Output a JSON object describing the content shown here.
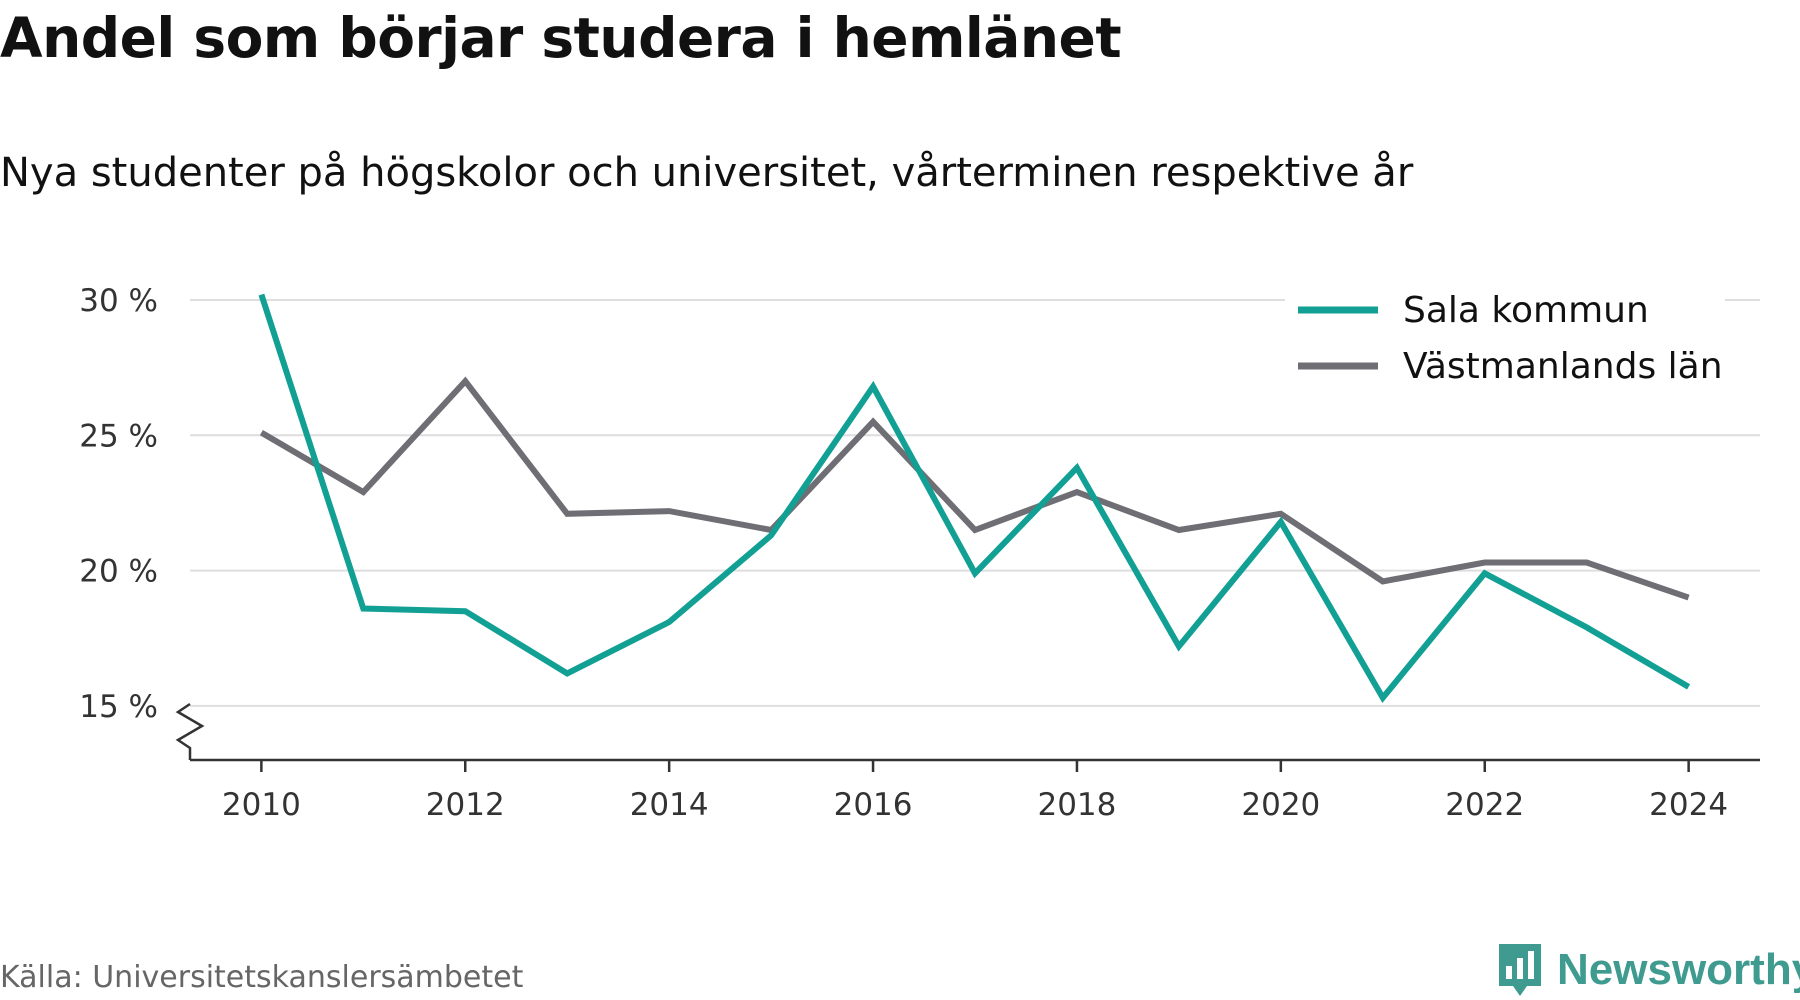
{
  "title": "Andel som börjar studera i hemlänet",
  "subtitle": "Nya studenter på högskolor och universitet, vårterminen respektive år",
  "source": "Källa: Universitetskanslersämbetet",
  "brand": {
    "name": "Newsworthy",
    "color": "#3f9b8f"
  },
  "chart_data": {
    "type": "line",
    "title": "Andel som börjar studera i hemlänet",
    "subtitle": "Nya studenter på högskolor och universitet, vårterminen respektive år",
    "x": [
      2010,
      2011,
      2012,
      2013,
      2014,
      2015,
      2016,
      2017,
      2018,
      2019,
      2020,
      2021,
      2022,
      2023,
      2024
    ],
    "xticks": [
      2010,
      2012,
      2014,
      2016,
      2018,
      2020,
      2022,
      2024
    ],
    "xtick_labels": [
      "2010",
      "2012",
      "2014",
      "2016",
      "2018",
      "2020",
      "2022",
      "2024"
    ],
    "yticks": [
      15,
      20,
      25,
      30
    ],
    "ytick_labels": [
      "15 %",
      "20 %",
      "25 %",
      "30 %"
    ],
    "ylim": [
      13,
      30
    ],
    "xlim": [
      2009.3,
      2024.7
    ],
    "y_axis_break": true,
    "grid": true,
    "legend_position": "top-right",
    "series": [
      {
        "name": "Sala kommun",
        "color": "#12a094",
        "values": [
          30.2,
          18.6,
          18.5,
          16.2,
          18.1,
          21.3,
          26.8,
          19.9,
          23.8,
          17.2,
          21.8,
          15.3,
          19.9,
          17.9,
          15.7
        ]
      },
      {
        "name": "Västmanlands län",
        "color": "#6f6e74",
        "values": [
          25.1,
          22.9,
          27.0,
          22.1,
          22.2,
          21.5,
          25.5,
          21.5,
          22.9,
          21.5,
          22.1,
          19.6,
          20.3,
          20.3,
          19.0
        ]
      }
    ]
  }
}
